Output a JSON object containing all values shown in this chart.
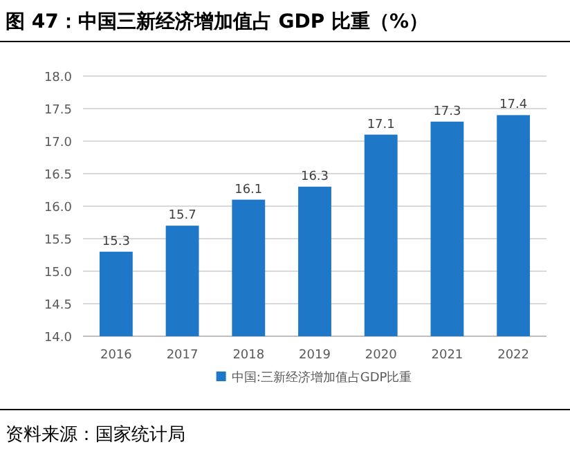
{
  "chart_data": {
    "type": "bar",
    "title": "图 47：中国三新经济增加值占 GDP 比重（%）",
    "categories": [
      "2016",
      "2017",
      "2018",
      "2019",
      "2020",
      "2021",
      "2022"
    ],
    "series": [
      {
        "name": "中国:三新经济增加值占GDP比重",
        "color": "#1f77c8",
        "values": [
          15.3,
          15.7,
          16.1,
          16.3,
          17.1,
          17.3,
          17.4
        ]
      }
    ],
    "ylim": [
      14.0,
      18.0
    ],
    "yticks": [
      {
        "value": 14,
        "label": "14.0"
      },
      {
        "value": 14.5,
        "label": "14.5"
      },
      {
        "value": 15,
        "label": "15.0"
      },
      {
        "value": 15.5,
        "label": "15.5"
      },
      {
        "value": 16,
        "label": "16.0"
      },
      {
        "value": 16.5,
        "label": "16.5"
      },
      {
        "value": 17,
        "label": "17.0"
      },
      {
        "value": 17.5,
        "label": "17.5"
      },
      {
        "value": 18,
        "label": "18.0"
      }
    ],
    "grid": "y",
    "legend": "bottom",
    "data_labels": true,
    "annotations": [
      "资料来源：国家统计局"
    ]
  }
}
